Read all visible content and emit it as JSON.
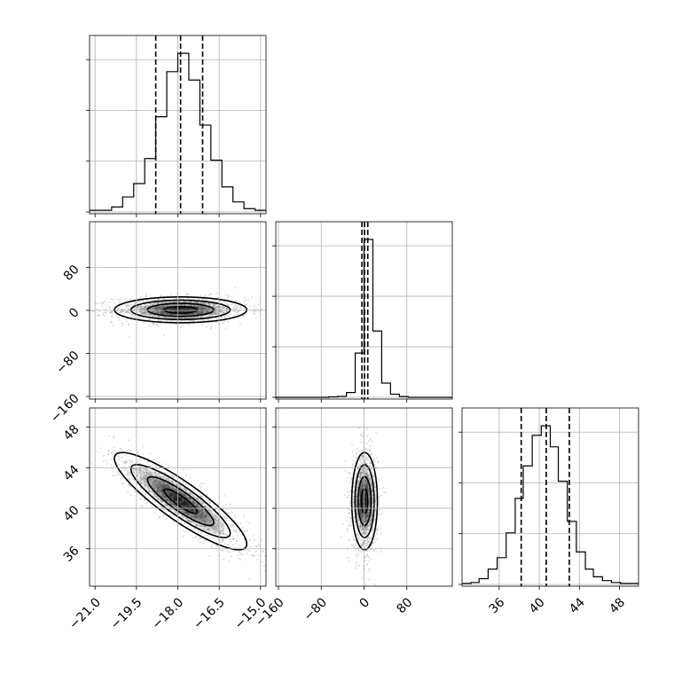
{
  "chart_data": {
    "type": "corner",
    "grid": true,
    "parameters": [
      {
        "range": [
          -21.2,
          -14.8
        ],
        "ticks": [
          -21.0,
          -19.5,
          -18.0,
          -16.5,
          -15.0
        ],
        "tick_labels": [
          "−21.0",
          "−19.5",
          "−18.0",
          "−16.5",
          "−15.0"
        ],
        "quantiles": [
          -18.8,
          -17.9,
          -17.1
        ]
      },
      {
        "range": [
          -165,
          165
        ],
        "ticks": [
          -160,
          -80,
          0,
          80
        ],
        "tick_labels": [
          "−160",
          "−80",
          "0",
          "80"
        ],
        "quantiles": [
          -4,
          1,
          7
        ]
      },
      {
        "range": [
          32.3,
          49.9
        ],
        "ticks": [
          36,
          40,
          44,
          48
        ],
        "tick_labels": [
          "36",
          "40",
          "44",
          "48"
        ],
        "quantiles": [
          38.2,
          40.7,
          43.0
        ]
      }
    ],
    "histograms": [
      {
        "param": 0,
        "bin_edges": [
          -21.2,
          -20.8,
          -20.4,
          -20.0,
          -19.6,
          -19.2,
          -18.8,
          -18.4,
          -18.0,
          -17.6,
          -17.2,
          -16.8,
          -16.4,
          -16.0,
          -15.6,
          -15.2,
          -14.8
        ],
        "counts": [
          1,
          1,
          3,
          9,
          17,
          32,
          57,
          84,
          95,
          79,
          52,
          31,
          15,
          6,
          2,
          1
        ]
      },
      {
        "param": 1,
        "bin_edges": [
          -165,
          -148.5,
          -132,
          -115.5,
          -99,
          -82.5,
          -66,
          -49.5,
          -33,
          -16.5,
          0,
          16.5,
          33,
          49.5,
          66,
          82.5,
          99,
          115.5,
          132,
          148.5,
          165
        ],
        "counts": [
          0,
          0,
          0,
          0,
          0,
          0,
          0.3,
          0.6,
          3,
          28,
          100,
          42,
          9,
          2,
          0.5,
          0,
          0,
          0,
          0,
          0
        ]
      },
      {
        "param": 2,
        "bin_edges": [
          32.3,
          33.2,
          34.0,
          34.9,
          35.8,
          36.7,
          37.6,
          38.4,
          39.3,
          40.2,
          41.1,
          41.9,
          42.8,
          43.7,
          44.6,
          45.4,
          46.3,
          47.2,
          48.1,
          49.0,
          49.9
        ],
        "counts": [
          0.5,
          1,
          3,
          8,
          14,
          27,
          45,
          62,
          78,
          83,
          72,
          54,
          33,
          17,
          8,
          4,
          2,
          1,
          0.5,
          0.5
        ]
      }
    ],
    "pairs": [
      {
        "x_param": 0,
        "y_param": 1,
        "center": [
          -17.9,
          1
        ],
        "sigma": [
          1.2,
          12
        ],
        "rho": 0.0,
        "contours": [
          0.5,
          1.0,
          1.5,
          2.0
        ]
      },
      {
        "x_param": 0,
        "y_param": 2,
        "center": [
          -17.9,
          40.7
        ],
        "sigma": [
          1.2,
          2.4
        ],
        "rho": -0.88,
        "contours": [
          0.5,
          1.0,
          1.5,
          2.0
        ]
      },
      {
        "x_param": 1,
        "y_param": 2,
        "center": [
          1,
          40.7
        ],
        "sigma": [
          12,
          2.4
        ],
        "rho": 0.0,
        "contours": [
          0.5,
          1.0,
          1.5,
          2.0
        ]
      }
    ],
    "colors": {
      "line": "#000000",
      "grid": "#b0b0b0",
      "density": "#7f7f7f"
    }
  }
}
